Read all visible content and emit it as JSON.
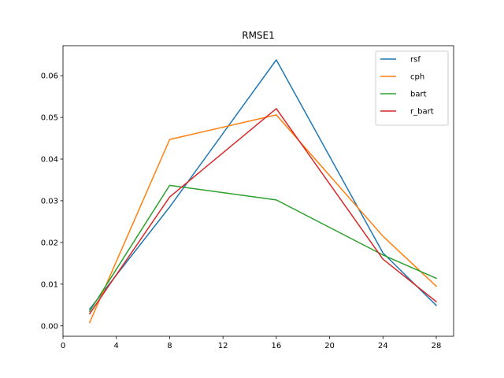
{
  "chart_data": {
    "type": "line",
    "title": "RMSE1",
    "xlabel": "",
    "ylabel": "",
    "x": [
      2,
      8,
      16,
      24,
      28
    ],
    "xlim": [
      0,
      29.3
    ],
    "ylim": [
      -0.0025,
      0.0672
    ],
    "xticks": [
      0,
      4,
      8,
      12,
      16,
      20,
      24,
      28
    ],
    "xtick_labels": [
      "0",
      "4",
      "8",
      "12",
      "16",
      "20",
      "24",
      "28"
    ],
    "yticks": [
      0.0,
      0.01,
      0.02,
      0.03,
      0.04,
      0.05,
      0.06
    ],
    "ytick_labels": [
      "0.00",
      "0.01",
      "0.02",
      "0.03",
      "0.04",
      "0.05",
      "0.06"
    ],
    "grid": false,
    "legend_position": "top-right",
    "series": [
      {
        "name": "rsf",
        "color": "#1f77b4",
        "values": [
          0.004,
          0.0285,
          0.0638,
          0.0175,
          0.0049
        ]
      },
      {
        "name": "cph",
        "color": "#ff7f0e",
        "values": [
          0.0008,
          0.0447,
          0.0506,
          0.0215,
          0.0095
        ]
      },
      {
        "name": "bart",
        "color": "#2ca02c",
        "values": [
          0.0035,
          0.0337,
          0.0302,
          0.017,
          0.0114
        ]
      },
      {
        "name": "r_bart",
        "color": "#d62728",
        "values": [
          0.0029,
          0.0309,
          0.0521,
          0.016,
          0.0058
        ]
      }
    ]
  }
}
